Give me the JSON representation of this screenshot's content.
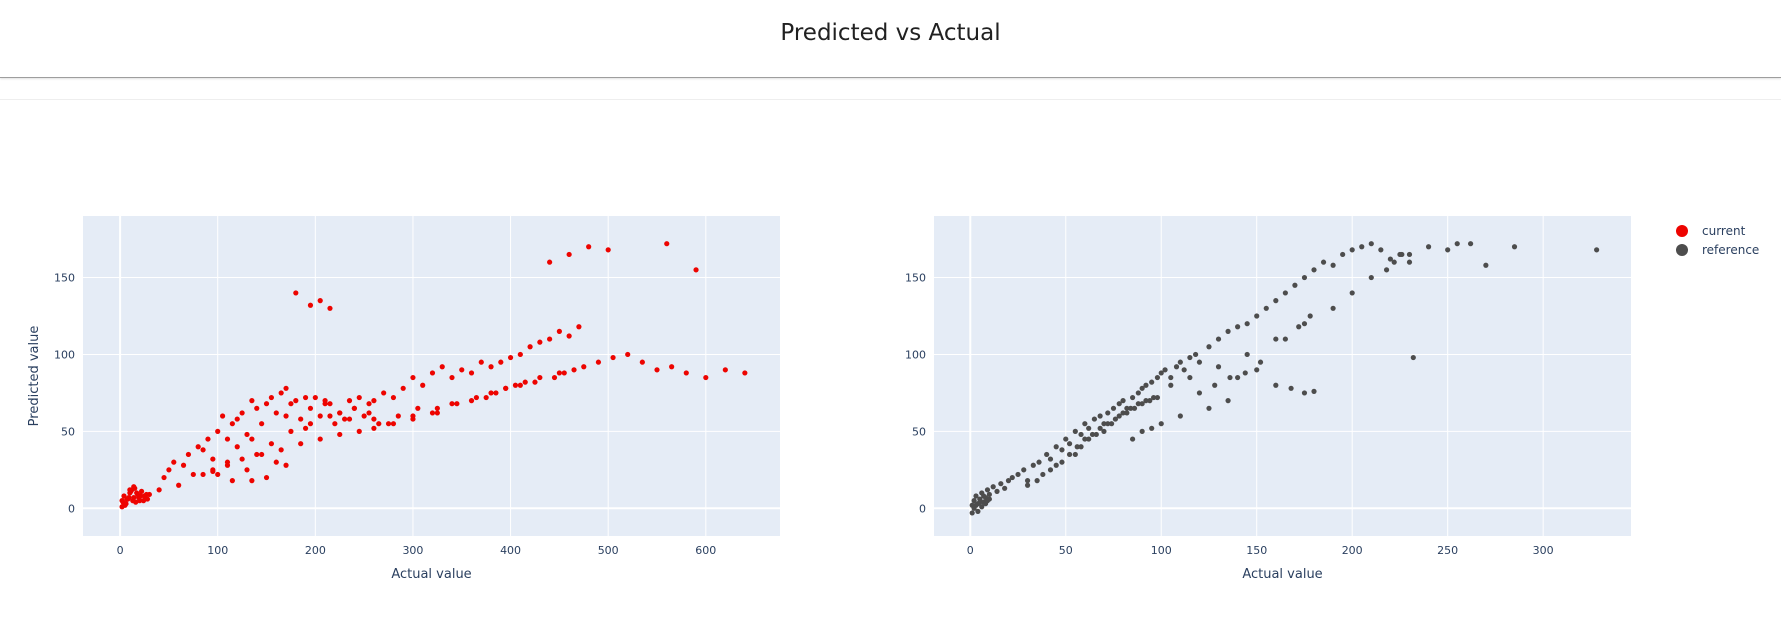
{
  "header": {
    "title": "Predicted vs Actual"
  },
  "colors": {
    "current": "#ed0400",
    "reference": "#4d4d4d",
    "plot_bg": "#e5ecf6",
    "grid": "#ffffff"
  },
  "chart_data": [
    {
      "type": "scatter",
      "series_name": "current",
      "xlabel": "Actual value",
      "ylabel": "Predicted value",
      "xlim": [
        -38,
        676
      ],
      "ylim": [
        -18,
        190
      ],
      "xticks": [
        0,
        100,
        200,
        300,
        400,
        500,
        600
      ],
      "yticks": [
        0,
        50,
        100,
        150
      ],
      "x": [
        2,
        4,
        6,
        8,
        10,
        12,
        14,
        16,
        18,
        20,
        22,
        25,
        28,
        30,
        5,
        9,
        13,
        17,
        21,
        3,
        7,
        11,
        15,
        19,
        24,
        27,
        2,
        6,
        10,
        14,
        40,
        45,
        50,
        55,
        60,
        65,
        70,
        75,
        80,
        85,
        90,
        95,
        100,
        105,
        110,
        115,
        120,
        125,
        130,
        135,
        140,
        145,
        150,
        155,
        160,
        165,
        170,
        175,
        180,
        185,
        190,
        195,
        200,
        205,
        210,
        215,
        220,
        225,
        230,
        235,
        240,
        245,
        250,
        255,
        260,
        270,
        280,
        290,
        300,
        310,
        320,
        330,
        340,
        350,
        360,
        370,
        380,
        390,
        400,
        410,
        420,
        430,
        440,
        450,
        460,
        470,
        180,
        195,
        205,
        215,
        170,
        190,
        210,
        225,
        240,
        260,
        275,
        300,
        325,
        345,
        365,
        380,
        395,
        410,
        425,
        445,
        455,
        465,
        475,
        490,
        505,
        520,
        535,
        550,
        565,
        580,
        600,
        620,
        640,
        480,
        460,
        440,
        500,
        560,
        590,
        120,
        140,
        160,
        135,
        155,
        175,
        195,
        215,
        235,
        255,
        245,
        265,
        285,
        305,
        325,
        340,
        360,
        375,
        385,
        395,
        405,
        415,
        430,
        450,
        85,
        95,
        110,
        125,
        145,
        165,
        185,
        205,
        225,
        260,
        280,
        300,
        320,
        110,
        130,
        150,
        115,
        100,
        95,
        135,
        170
      ],
      "y": [
        5,
        8,
        3,
        6,
        10,
        12,
        7,
        4,
        9,
        5,
        11,
        8,
        6,
        9,
        2,
        7,
        5,
        10,
        8,
        4,
        6,
        11,
        13,
        7,
        5,
        9,
        1,
        3,
        12,
        14,
        12,
        20,
        25,
        30,
        15,
        28,
        35,
        22,
        40,
        38,
        45,
        32,
        50,
        60,
        45,
        55,
        58,
        62,
        48,
        70,
        65,
        55,
        68,
        72,
        62,
        75,
        60,
        68,
        70,
        58,
        52,
        65,
        72,
        60,
        70,
        68,
        55,
        62,
        58,
        70,
        65,
        72,
        60,
        68,
        70,
        75,
        72,
        78,
        85,
        80,
        88,
        92,
        85,
        90,
        88,
        95,
        92,
        95,
        98,
        100,
        105,
        108,
        110,
        115,
        112,
        118,
        140,
        132,
        135,
        130,
        78,
        72,
        68,
        62,
        65,
        58,
        55,
        60,
        65,
        68,
        72,
        75,
        78,
        80,
        82,
        85,
        88,
        90,
        92,
        95,
        98,
        100,
        95,
        90,
        92,
        88,
        85,
        90,
        88,
        170,
        165,
        160,
        168,
        172,
        155,
        40,
        35,
        30,
        45,
        42,
        50,
        55,
        60,
        58,
        62,
        50,
        55,
        60,
        65,
        62,
        68,
        70,
        72,
        75,
        78,
        80,
        82,
        85,
        88,
        22,
        25,
        28,
        32,
        35,
        38,
        42,
        45,
        48,
        52,
        55,
        58,
        62,
        30,
        25,
        20,
        18,
        22,
        24,
        18,
        28
      ]
    },
    {
      "type": "scatter",
      "series_name": "reference",
      "xlabel": "Actual value",
      "ylabel": "",
      "xlim": [
        -19,
        346
      ],
      "ylim": [
        -18,
        190
      ],
      "xticks": [
        0,
        50,
        100,
        150,
        200,
        250,
        300
      ],
      "yticks": [
        0,
        50,
        100,
        150
      ],
      "x": [
        1,
        2,
        3,
        4,
        5,
        6,
        7,
        8,
        9,
        10,
        12,
        14,
        16,
        18,
        20,
        2,
        4,
        6,
        8,
        10,
        1,
        3,
        5,
        7,
        9,
        22,
        25,
        28,
        30,
        33,
        36,
        40,
        42,
        45,
        48,
        50,
        52,
        55,
        58,
        60,
        62,
        65,
        68,
        70,
        72,
        75,
        78,
        80,
        82,
        85,
        88,
        90,
        92,
        95,
        98,
        100,
        102,
        105,
        108,
        110,
        112,
        115,
        118,
        120,
        125,
        130,
        135,
        140,
        145,
        150,
        155,
        160,
        165,
        170,
        175,
        180,
        185,
        190,
        195,
        200,
        205,
        210,
        215,
        220,
        225,
        230,
        240,
        255,
        270,
        285,
        328,
        232,
        175,
        168,
        180,
        150,
        140,
        160,
        135,
        125,
        110,
        100,
        95,
        90,
        85,
        30,
        35,
        38,
        42,
        45,
        48,
        52,
        56,
        60,
        64,
        68,
        72,
        76,
        80,
        84,
        88,
        92,
        96,
        55,
        58,
        62,
        66,
        70,
        74,
        78,
        82,
        86,
        90,
        94,
        98,
        105,
        115,
        130,
        145,
        160,
        175,
        190,
        200,
        210,
        218,
        222,
        226,
        230,
        250,
        262,
        120,
        128,
        136,
        144,
        152,
        165,
        172,
        178
      ],
      "y": [
        2,
        5,
        8,
        3,
        6,
        10,
        4,
        7,
        12,
        9,
        14,
        11,
        16,
        13,
        18,
        0,
        -2,
        1,
        3,
        6,
        -3,
        2,
        4,
        8,
        5,
        20,
        22,
        25,
        18,
        28,
        30,
        35,
        32,
        40,
        38,
        45,
        42,
        50,
        48,
        55,
        52,
        58,
        60,
        55,
        62,
        65,
        68,
        70,
        65,
        72,
        75,
        78,
        80,
        82,
        85,
        88,
        90,
        85,
        92,
        95,
        90,
        98,
        100,
        95,
        105,
        110,
        115,
        118,
        120,
        125,
        130,
        135,
        140,
        145,
        150,
        155,
        160,
        158,
        165,
        168,
        170,
        172,
        168,
        162,
        165,
        160,
        170,
        172,
        158,
        170,
        168,
        98,
        75,
        78,
        76,
        90,
        85,
        80,
        70,
        65,
        60,
        55,
        52,
        50,
        45,
        15,
        18,
        22,
        25,
        28,
        30,
        35,
        40,
        45,
        48,
        52,
        55,
        58,
        62,
        65,
        68,
        70,
        72,
        35,
        40,
        45,
        48,
        50,
        55,
        60,
        62,
        65,
        68,
        70,
        72,
        80,
        85,
        92,
        100,
        110,
        120,
        130,
        140,
        150,
        155,
        160,
        165,
        165,
        168,
        172,
        75,
        80,
        85,
        88,
        95,
        110,
        118,
        125
      ]
    }
  ]
}
